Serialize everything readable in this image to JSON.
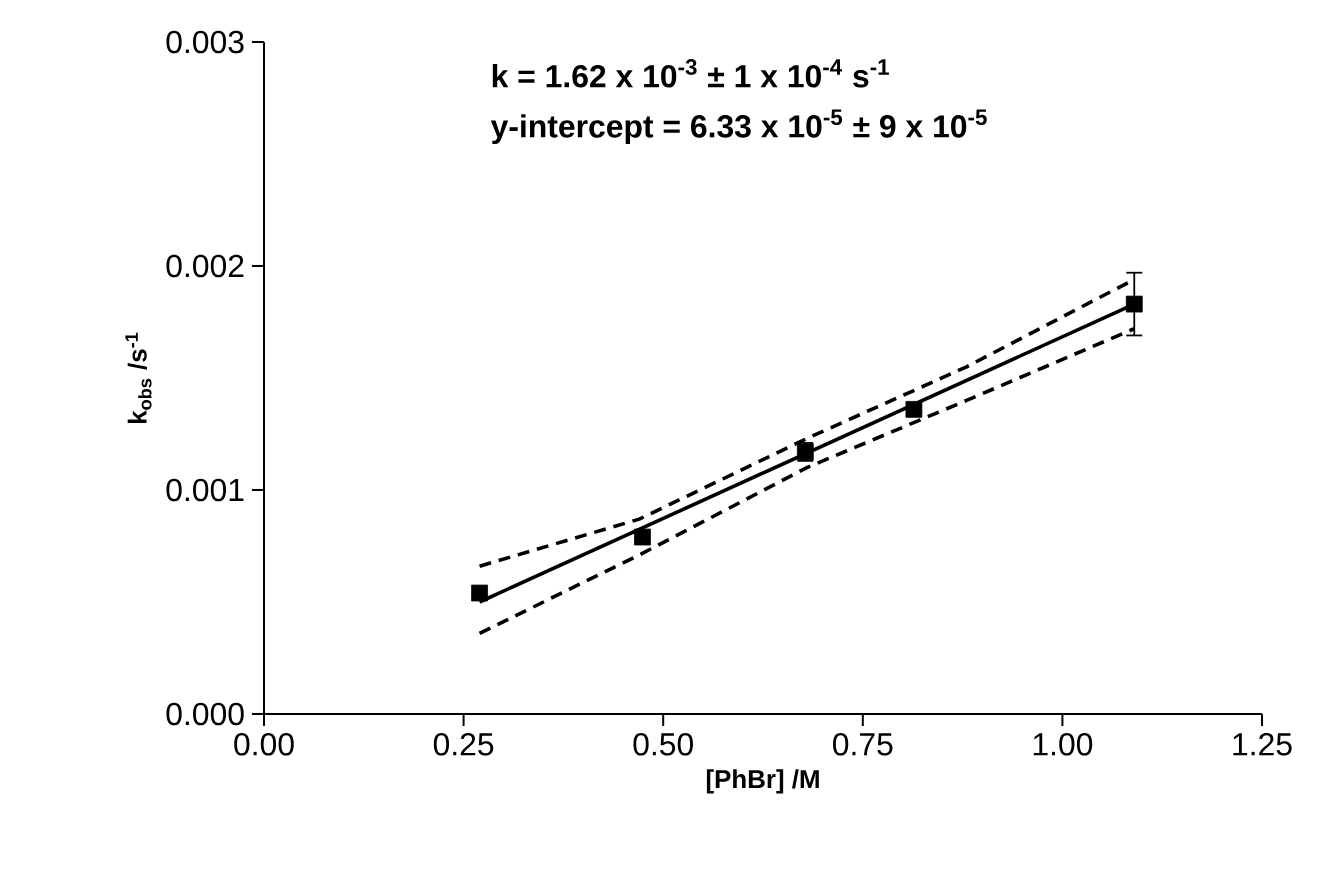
{
  "chart_data": {
    "type": "scatter",
    "xlabel": "[PhBr] /M",
    "ylabel": "k$_{obs}$ /s$^{-1}$",
    "annotations": [
      "k = 1.62 x 10$^{-3}$ ± 1 x 10$^{-4}$ s$^{-1}$",
      "y-intercept = 6.33 x 10$^{-5}$ ± 9 x 10$^{-5}$"
    ],
    "xlim": [
      0,
      1.25
    ],
    "ylim": [
      0,
      0.003
    ],
    "xticks": [
      {
        "value": 0,
        "label": "0.00"
      },
      {
        "value": 0.25,
        "label": "0.25"
      },
      {
        "value": 0.5,
        "label": "0.50"
      },
      {
        "value": 0.75,
        "label": "0.75"
      },
      {
        "value": 1,
        "label": "1.00"
      },
      {
        "value": 1.25,
        "label": "1.25"
      }
    ],
    "yticks": [
      {
        "value": 0,
        "label": "0.000"
      },
      {
        "value": 0.001,
        "label": "0.001"
      },
      {
        "value": 0.002,
        "label": "0.002"
      },
      {
        "value": 0.003,
        "label": "0.003"
      }
    ],
    "grid": false,
    "series": [
      {
        "color": "#000000",
        "marker": "square",
        "x": [
          0.27,
          0.474,
          0.678,
          0.814,
          1.09
        ],
        "values": [
          0.00054,
          0.00079,
          0.00117,
          0.00136,
          0.00183
        ],
        "errors": [
          null,
          null,
          4e-05,
          null,
          0.00014
        ]
      },
      {
        "type": "line",
        "color": "#000000",
        "marker": "none",
        "line_style": "solid",
        "x": [
          0.27,
          1.09
        ],
        "values": [
          0.0005,
          0.00183
        ]
      },
      {
        "type": "line",
        "color": "#000000",
        "marker": "none",
        "line_style": "dashed",
        "x": [
          0.27,
          0.47,
          0.68,
          0.88,
          1.09
        ],
        "values": [
          0.00066,
          0.00087,
          0.00123,
          0.00155,
          0.00194
        ]
      },
      {
        "type": "line",
        "color": "#000000",
        "marker": "none",
        "line_style": "dashed",
        "x": [
          0.27,
          0.47,
          0.68,
          0.88,
          1.09
        ],
        "values": [
          0.00036,
          0.00071,
          0.0011,
          0.0014,
          0.00172
        ]
      }
    ]
  }
}
